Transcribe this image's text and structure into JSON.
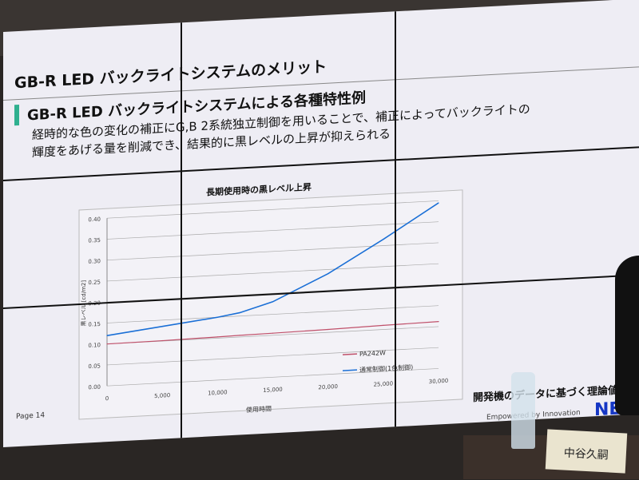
{
  "slide": {
    "title": "GB-R LED バックライトシステムのメリット",
    "subtitle": "GB-R LED バックライトシステムによる各種特性例",
    "body_line1": "経時的な色の変化の補正にG,B 2系統独立制御を用いることで、補正によってバックライトの",
    "body_line2": "輝度をあげる量を削減でき、結果的に黒レベルの上昇が抑えられる",
    "page": "Page 14",
    "note": "開発機のデータに基づく理論値",
    "tagline": "Empowered by Innovation",
    "logo": "NEC",
    "accent": "#2fb08f"
  },
  "nameplate": "中谷久嗣",
  "chart_data": {
    "type": "line",
    "title": "長期使用時の黒レベル上昇",
    "xlabel": "使用時間",
    "ylabel": "黒レベル [cd/m2]",
    "xlim": [
      0,
      30000
    ],
    "ylim": [
      0,
      0.4
    ],
    "xticks": [
      "0",
      "5,000",
      "10,000",
      "15,000",
      "20,000",
      "25,000",
      "30,000"
    ],
    "yticks": [
      "0.00",
      "0.05",
      "0.10",
      "0.15",
      "0.20",
      "0.25",
      "0.30",
      "0.35",
      "0.40"
    ],
    "grid": true,
    "legend": "bottom-right",
    "x": [
      0,
      5000,
      10000,
      12000,
      15000,
      20000,
      25000,
      30000
    ],
    "series": [
      {
        "name": "PA242W",
        "color": "#c0506a",
        "values": [
          0.1,
          0.101,
          0.103,
          0.104,
          0.105,
          0.107,
          0.11,
          0.112
        ]
      },
      {
        "name": "通常制御(1色制御)",
        "color": "#1a6fd6",
        "values": [
          0.12,
          0.135,
          0.15,
          0.158,
          0.18,
          0.24,
          0.315,
          0.395
        ]
      }
    ]
  }
}
